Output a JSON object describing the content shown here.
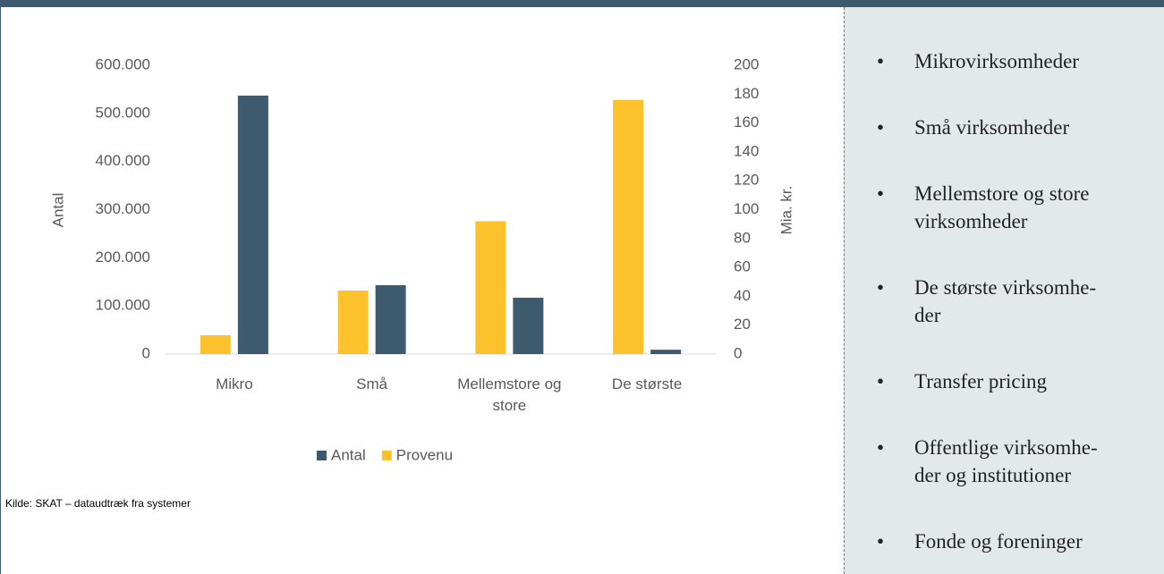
{
  "chart_data": {
    "type": "bar",
    "categories": [
      "Mikro",
      "Små",
      "Mellemstore og store",
      "De største"
    ],
    "series": [
      {
        "name": "Antal",
        "color": "#3e5a6e",
        "values": [
          537000,
          143000,
          117000,
          9000
        ]
      },
      {
        "name": "Provenu",
        "color": "#fcc12b",
        "values": [
          13,
          44,
          92,
          176
        ],
        "axis": "y2"
      }
    ],
    "ylabel": "Antal",
    "y2label": "Mia. kr.",
    "ylim": [
      0,
      600000
    ],
    "yticks": [
      0,
      {
        "value": 100000,
        "label": "100.000"
      },
      {
        "value": 200000,
        "label": "200.000"
      },
      {
        "value": 300000,
        "label": "300.000"
      },
      {
        "value": 400000,
        "label": "400.000"
      },
      {
        "value": 500000,
        "label": "500.000"
      },
      {
        "value": 600000,
        "label": "600.000"
      }
    ],
    "y2lim": [
      0,
      200
    ],
    "y2ticks": [
      0,
      20,
      40,
      60,
      80,
      100,
      120,
      140,
      160,
      180,
      200
    ],
    "legend": "bottom",
    "source": "Kilde: SKAT – dataudtræk fra systemer"
  },
  "sidebar": {
    "items": [
      "Mikrovirksomheder",
      "Små virksomheder",
      "Mellemstore og store virksomheder",
      "De største virksomhe-der",
      "Transfer pricing",
      "Offentlige virksomhe-der og institutioner",
      "Fonde og foreninger"
    ]
  }
}
